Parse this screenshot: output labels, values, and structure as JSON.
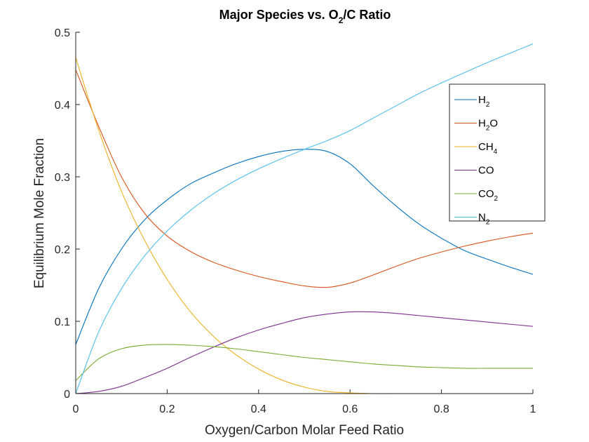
{
  "chart_data": {
    "type": "line",
    "title": {
      "main": "Major Species vs. O",
      "sub": "2",
      "tail": "/C Ratio"
    },
    "xlabel": "Oxygen/Carbon Molar Feed Ratio",
    "ylabel": "Equilibrium Mole Fraction",
    "xlim": [
      0,
      1
    ],
    "ylim": [
      0,
      0.5
    ],
    "xticks": [
      0,
      0.2,
      0.4,
      0.6,
      0.8,
      1
    ],
    "xtick_labels": [
      "0",
      "0.2",
      "0.4",
      "0.6",
      "0.8",
      "1"
    ],
    "yticks": [
      0,
      0.1,
      0.2,
      0.3,
      0.4,
      0.5
    ],
    "ytick_labels": [
      "0",
      "0.1",
      "0.2",
      "0.3",
      "0.4",
      "0.5"
    ],
    "grid": false,
    "legend_position": "top-right",
    "series": [
      {
        "name": "H",
        "name_sub": "2",
        "name_tail": "",
        "color": "#0072BD",
        "x": [
          0,
          0.05,
          0.1,
          0.15,
          0.2,
          0.25,
          0.3,
          0.35,
          0.4,
          0.45,
          0.5,
          0.55,
          0.6,
          0.65,
          0.7,
          0.75,
          0.8,
          0.85,
          0.9,
          0.95,
          1.0
        ],
        "y": [
          0.068,
          0.145,
          0.2,
          0.24,
          0.268,
          0.29,
          0.305,
          0.318,
          0.328,
          0.335,
          0.338,
          0.335,
          0.318,
          0.288,
          0.26,
          0.235,
          0.215,
          0.198,
          0.186,
          0.175,
          0.165
        ]
      },
      {
        "name": "H",
        "name_sub": "2",
        "name_tail": "O",
        "color": "#D95319",
        "x": [
          0,
          0.05,
          0.1,
          0.15,
          0.2,
          0.25,
          0.3,
          0.35,
          0.4,
          0.45,
          0.5,
          0.55,
          0.6,
          0.65,
          0.7,
          0.75,
          0.8,
          0.85,
          0.9,
          0.95,
          1.0
        ],
        "y": [
          0.448,
          0.37,
          0.3,
          0.25,
          0.218,
          0.197,
          0.182,
          0.171,
          0.162,
          0.155,
          0.149,
          0.147,
          0.153,
          0.164,
          0.176,
          0.187,
          0.196,
          0.204,
          0.211,
          0.217,
          0.222
        ]
      },
      {
        "name": "CH",
        "name_sub": "4",
        "name_tail": "",
        "color": "#EDB120",
        "x": [
          0,
          0.05,
          0.1,
          0.15,
          0.2,
          0.25,
          0.3,
          0.35,
          0.4,
          0.45,
          0.5,
          0.55,
          0.6,
          0.65,
          0.7,
          0.75,
          0.8,
          0.85,
          0.9,
          0.95,
          1.0
        ],
        "y": [
          0.465,
          0.365,
          0.28,
          0.213,
          0.158,
          0.114,
          0.08,
          0.054,
          0.034,
          0.019,
          0.009,
          0.003,
          0.001,
          0.0,
          0.0,
          0.0,
          0.0,
          0.0,
          0.0,
          0.0,
          0.0
        ]
      },
      {
        "name": "CO",
        "name_sub": "",
        "name_tail": "",
        "color": "#7E2F8E",
        "x": [
          0,
          0.05,
          0.1,
          0.15,
          0.2,
          0.25,
          0.3,
          0.35,
          0.4,
          0.45,
          0.5,
          0.55,
          0.6,
          0.65,
          0.7,
          0.75,
          0.8,
          0.85,
          0.9,
          0.95,
          1.0
        ],
        "y": [
          0.0,
          0.003,
          0.01,
          0.022,
          0.035,
          0.05,
          0.064,
          0.077,
          0.088,
          0.097,
          0.105,
          0.11,
          0.113,
          0.113,
          0.111,
          0.108,
          0.105,
          0.102,
          0.099,
          0.096,
          0.093
        ]
      },
      {
        "name": "CO",
        "name_sub": "2",
        "name_tail": "",
        "color": "#77AC30",
        "x": [
          0,
          0.05,
          0.1,
          0.15,
          0.2,
          0.25,
          0.3,
          0.35,
          0.4,
          0.45,
          0.5,
          0.55,
          0.6,
          0.65,
          0.7,
          0.75,
          0.8,
          0.85,
          0.9,
          0.95,
          1.0
        ],
        "y": [
          0.018,
          0.048,
          0.062,
          0.067,
          0.068,
          0.067,
          0.065,
          0.062,
          0.058,
          0.054,
          0.05,
          0.047,
          0.044,
          0.041,
          0.039,
          0.037,
          0.036,
          0.035,
          0.035,
          0.035,
          0.035
        ]
      },
      {
        "name": "N",
        "name_sub": "2",
        "name_tail": "",
        "color": "#4DBEEE",
        "x": [
          0,
          0.05,
          0.1,
          0.15,
          0.2,
          0.25,
          0.3,
          0.35,
          0.4,
          0.45,
          0.5,
          0.55,
          0.6,
          0.65,
          0.7,
          0.75,
          0.8,
          0.85,
          0.9,
          0.95,
          1.0
        ],
        "y": [
          0.0,
          0.085,
          0.145,
          0.19,
          0.225,
          0.253,
          0.276,
          0.295,
          0.311,
          0.325,
          0.338,
          0.35,
          0.364,
          0.381,
          0.398,
          0.415,
          0.43,
          0.444,
          0.458,
          0.471,
          0.484
        ]
      }
    ]
  }
}
